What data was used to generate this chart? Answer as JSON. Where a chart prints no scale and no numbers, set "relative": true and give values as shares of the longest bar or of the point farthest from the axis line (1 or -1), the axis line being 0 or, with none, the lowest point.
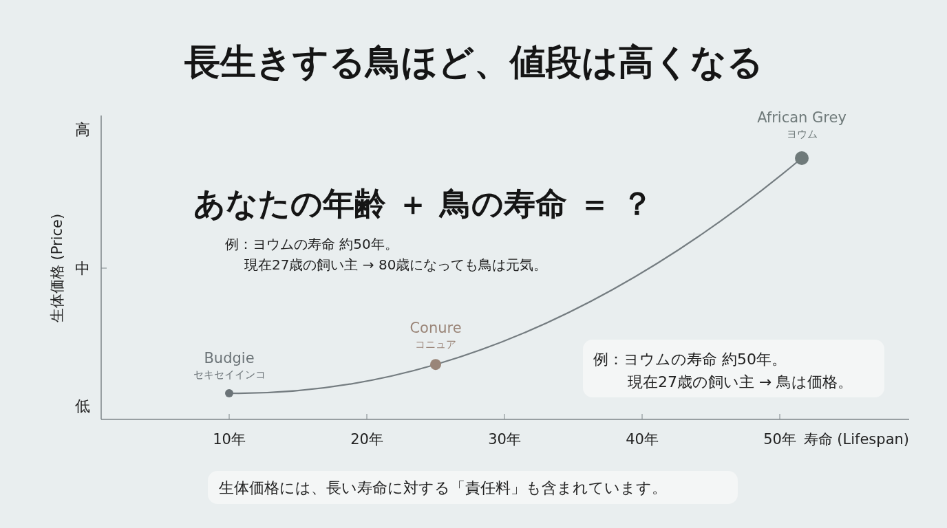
{
  "chart_data": {
    "type": "line",
    "title": "長生きする鳥ほど、値段は高くなる",
    "xlabel": "寿命 (Lifespan)",
    "ylabel": "生体価格 (Price)",
    "xlim": [
      0.7,
      59.4
    ],
    "xticks": [
      {
        "value": 10,
        "label": "10年"
      },
      {
        "value": 20,
        "label": "20年"
      },
      {
        "value": 30,
        "label": "30年"
      },
      {
        "value": 40,
        "label": "40年"
      },
      {
        "value": 50,
        "label": "50年"
      }
    ],
    "relative": true,
    "grid": false,
    "marker": "circle",
    "line_style": "solid",
    "series": [
      {
        "color": "#747c80",
        "x": [
          10,
          25,
          51.6
        ],
        "values": [
          0.1,
          0.21,
          1
        ],
        "colors": [
          "#6b7377",
          "#9a8578",
          "#6f7a7a"
        ]
      }
    ],
    "annotations": [
      "低",
      "中",
      "高",
      "あなたの年齢 ＋ 鳥の寿命 ＝ ？",
      "例：ヨウムの寿命 約50年。",
      "現在27歳の飼い主 → 80歳になっても鳥は元気。",
      "例：ヨウムの寿命 約50年。",
      "現在27歳の飼い主 → 鳥は価格。",
      "生体価格には、長い寿命に対する「責任料」も含まれています。",
      {
        "text": "Budgie",
        "x": 10,
        "y": 0.1
      },
      {
        "text": "セキセイインコ",
        "x": 10,
        "y": 0.1
      },
      {
        "text": "Conure",
        "x": 25,
        "y": 0.21
      },
      {
        "text": "コニュア",
        "x": 25,
        "y": 0.21
      },
      {
        "text": "African Grey",
        "x": 51.6,
        "y": 1
      },
      {
        "text": "ヨウム",
        "x": 51.6,
        "y": 1
      }
    ]
  }
}
